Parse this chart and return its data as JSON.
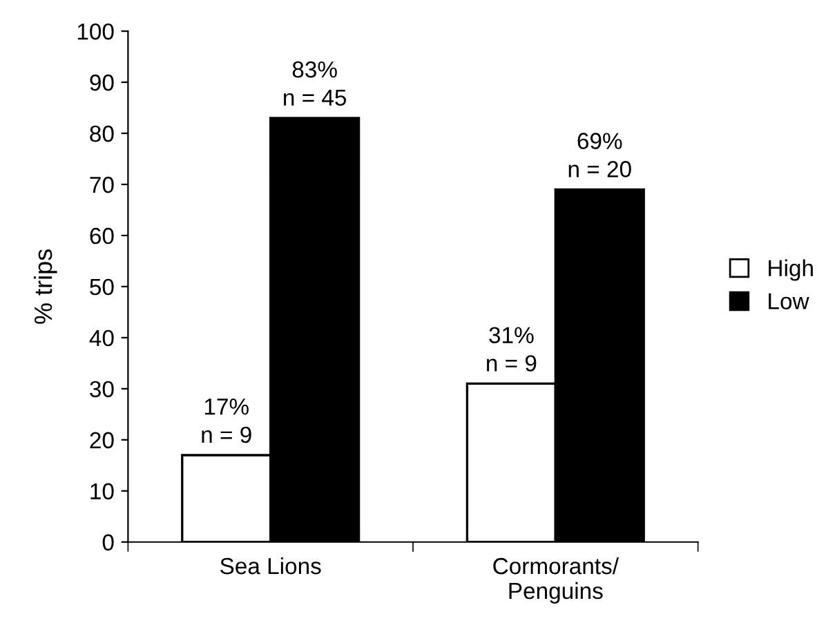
{
  "chart_data": {
    "type": "bar",
    "ylabel": "% trips",
    "categories": [
      "Sea Lions",
      "Cormorants/\nPenguins"
    ],
    "series": [
      {
        "name": "High",
        "color": "#ffffff",
        "values": [
          17,
          31
        ],
        "value_labels": [
          "17%\nn = 9",
          "31%\nn = 9"
        ]
      },
      {
        "name": "Low",
        "color": "#000000",
        "values": [
          83,
          69
        ],
        "value_labels": [
          "83%\nn = 45",
          "69%\nn = 20"
        ]
      }
    ],
    "ylim": [
      0,
      100
    ],
    "yticks": [
      0,
      10,
      20,
      30,
      40,
      50,
      60,
      70,
      80,
      90,
      100
    ],
    "grid": false,
    "legend": "right"
  }
}
